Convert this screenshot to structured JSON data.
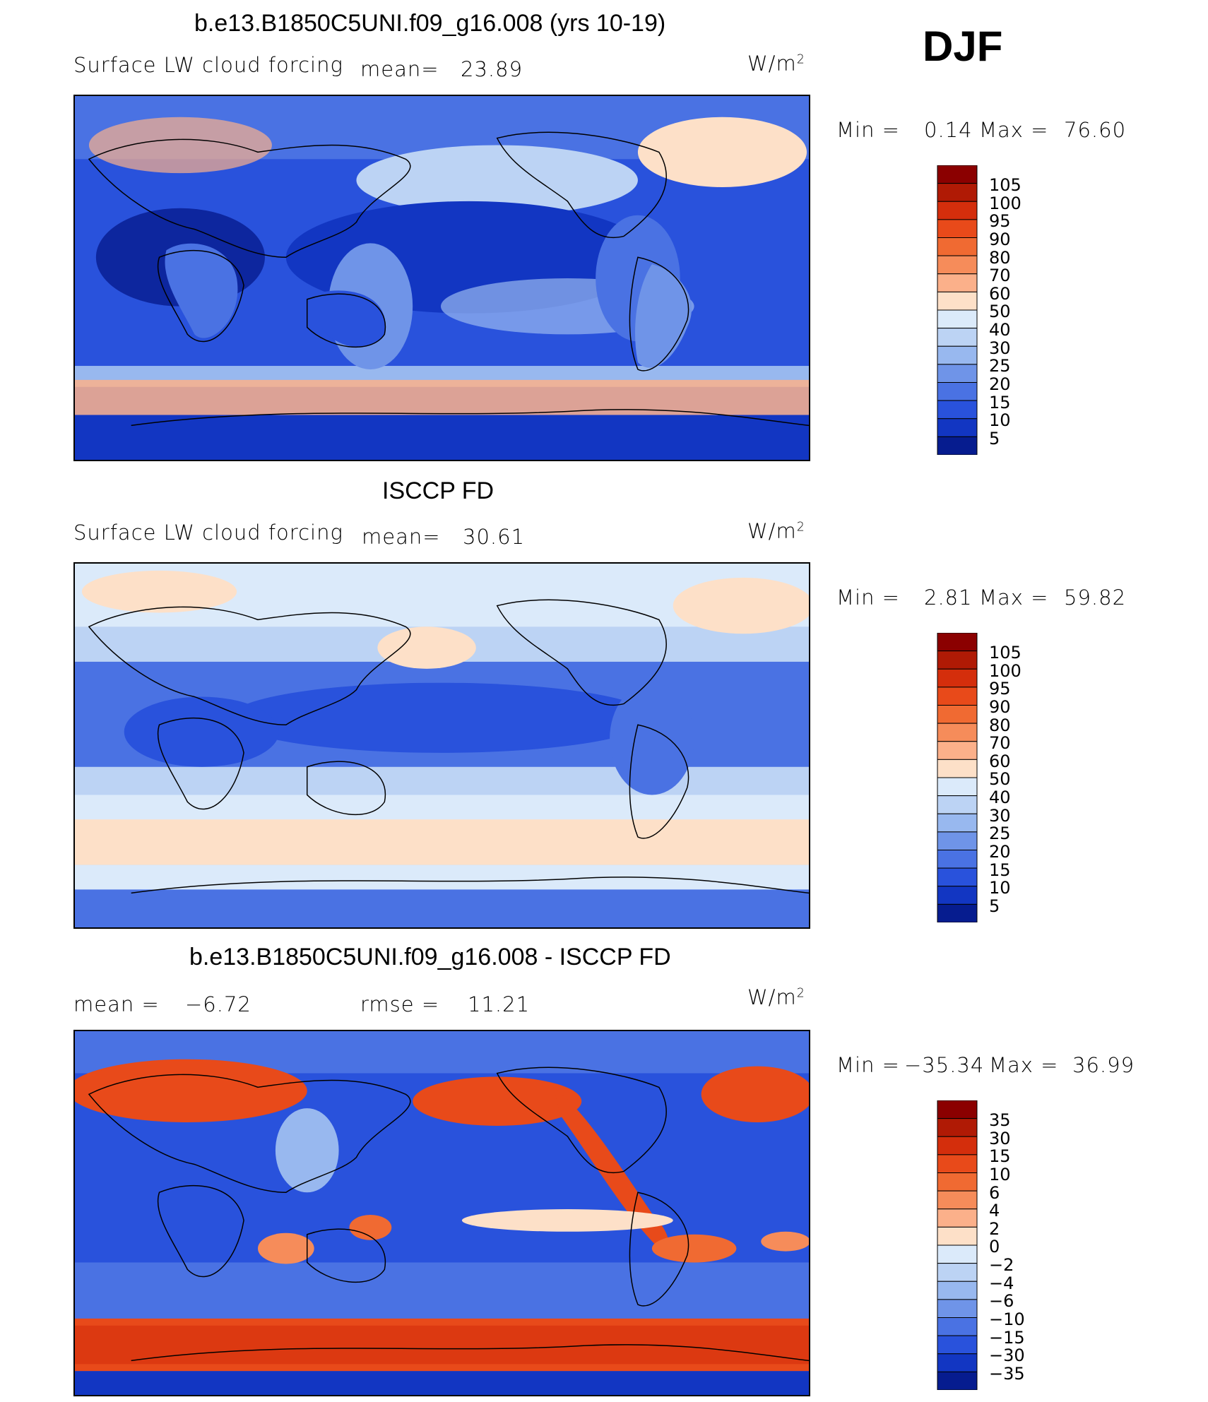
{
  "season": "DJF",
  "units": "W/m",
  "units_sup": "2",
  "panels": [
    {
      "title": "b.e13.B1850C5UNI.f09_g16.008 (yrs 10-19)",
      "variable": "Surface LW cloud forcing",
      "mean_label": "mean=",
      "mean_value": "23.89",
      "min_label": "Min =",
      "min_value": "0.14",
      "max_label": "Max =",
      "max_value": "76.60"
    },
    {
      "title": "ISCCP FD",
      "variable": "Surface LW cloud forcing",
      "mean_label": "mean=",
      "mean_value": "30.61",
      "min_label": "Min =",
      "min_value": "2.81",
      "max_label": "Max =",
      "max_value": "59.82"
    },
    {
      "title": "b.e13.B1850C5UNI.f09_g16.008 - ISCCP FD",
      "mean_label": "mean =",
      "mean_value": "−6.72",
      "rmse_label": "rmse =",
      "rmse_value": "11.21",
      "min_label": "Min =",
      "min_value": "−35.34",
      "max_label": "Max =",
      "max_value": "36.99"
    }
  ],
  "colorbar_abs": {
    "levels": [
      "105",
      "100",
      "95",
      "90",
      "80",
      "70",
      "60",
      "50",
      "40",
      "30",
      "25",
      "20",
      "15",
      "10",
      "5"
    ],
    "colors": [
      "#8b0000",
      "#b01a05",
      "#d42e0c",
      "#e84a1a",
      "#f06a32",
      "#f68c5a",
      "#fbb08a",
      "#fde0c8",
      "#dbeafa",
      "#bcd3f4",
      "#98b8ef",
      "#6f94e8",
      "#4a72e3",
      "#2952dc",
      "#1236c2",
      "#061c8f"
    ]
  },
  "colorbar_diff": {
    "levels": [
      "35",
      "30",
      "15",
      "10",
      "6",
      "4",
      "2",
      "0",
      "−2",
      "−4",
      "−6",
      "−10",
      "−15",
      "−30",
      "−35"
    ],
    "colors": [
      "#8b0000",
      "#b01a05",
      "#d42e0c",
      "#e84a1a",
      "#f06a32",
      "#f68c5a",
      "#fbb08a",
      "#fde0c8",
      "#dbeafa",
      "#bcd3f4",
      "#98b8ef",
      "#6f94e8",
      "#4a72e3",
      "#2952dc",
      "#1236c2",
      "#061c8f"
    ]
  }
}
